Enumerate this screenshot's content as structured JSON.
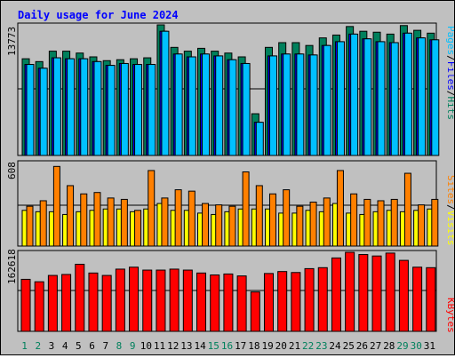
{
  "title": "Daily usage for June 2024",
  "colors": {
    "hits": "#00805c",
    "files": "#0000ff",
    "pages": "#00c0ff",
    "visits": "#ffff00",
    "sites": "#ff8000",
    "kbytes": "#ff0000",
    "title": "#0000ff",
    "background": "#c0c0c0",
    "weekend_label": "#00805c"
  },
  "chart_data": [
    {
      "type": "bar",
      "panel": "hits-files-pages",
      "ymax_label": "13773",
      "ymax": 13773,
      "categories": [
        "1",
        "2",
        "3",
        "4",
        "5",
        "6",
        "7",
        "8",
        "9",
        "10",
        "11",
        "12",
        "13",
        "14",
        "15",
        "16",
        "17",
        "18",
        "19",
        "20",
        "21",
        "22",
        "23",
        "24",
        "25",
        "26",
        "27",
        "28",
        "29",
        "30",
        "31"
      ],
      "right_label": {
        "pages": "Pages",
        "files": "Files",
        "hits": "Hits",
        "sep": "/"
      },
      "series": [
        {
          "name": "Hits",
          "color": "#00805c",
          "values": [
            10200,
            9900,
            11000,
            11000,
            10800,
            10400,
            10000,
            10100,
            10200,
            10300,
            13773,
            11400,
            11000,
            11300,
            11000,
            10800,
            10400,
            4400,
            11400,
            11900,
            11900,
            11600,
            12400,
            12700,
            13600,
            13100,
            13000,
            12800,
            13700,
            13200,
            12900
          ]
        },
        {
          "name": "Files",
          "color": "#0000ff",
          "values": [
            9600,
            9200,
            10300,
            10200,
            10200,
            9900,
            9500,
            9700,
            9600,
            9600,
            13100,
            10700,
            10400,
            10700,
            10500,
            10100,
            9700,
            3500,
            10500,
            10700,
            10700,
            10600,
            11600,
            12000,
            12800,
            12300,
            12000,
            11900,
            12900,
            12400,
            12200
          ]
        },
        {
          "name": "Pages",
          "color": "#00c0ff",
          "values": [
            9600,
            9200,
            10300,
            10200,
            10200,
            9900,
            9500,
            9700,
            9600,
            9600,
            13100,
            10700,
            10400,
            10700,
            10500,
            10100,
            9700,
            3500,
            10500,
            10700,
            10700,
            10600,
            11600,
            12000,
            12800,
            12300,
            12000,
            11900,
            12900,
            12400,
            12200
          ]
        }
      ]
    },
    {
      "type": "bar",
      "panel": "visits-sites",
      "ymax_label": "608",
      "ymax": 608,
      "categories": [
        "1",
        "2",
        "3",
        "4",
        "5",
        "6",
        "7",
        "8",
        "9",
        "10",
        "11",
        "12",
        "13",
        "14",
        "15",
        "16",
        "17",
        "18",
        "19",
        "20",
        "21",
        "22",
        "23",
        "24",
        "25",
        "26",
        "27",
        "28",
        "29",
        "30",
        "31"
      ],
      "right_label": {
        "sites": "Sites",
        "visits": "Visits",
        "sep": "/"
      },
      "series": [
        {
          "name": "Visits",
          "color": "#ffff00",
          "values": [
            260,
            250,
            250,
            230,
            250,
            260,
            270,
            270,
            250,
            270,
            310,
            260,
            260,
            240,
            230,
            250,
            270,
            270,
            270,
            240,
            240,
            260,
            250,
            310,
            240,
            230,
            250,
            260,
            250,
            260,
            270
          ]
        },
        {
          "name": "Sites",
          "color": "#ff8000",
          "values": [
            290,
            330,
            580,
            440,
            380,
            390,
            350,
            340,
            260,
            550,
            350,
            410,
            400,
            310,
            300,
            290,
            540,
            440,
            380,
            410,
            290,
            320,
            350,
            550,
            380,
            340,
            330,
            340,
            530,
            300,
            340
          ]
        }
      ]
    },
    {
      "type": "bar",
      "panel": "kbytes",
      "ymax_label": "162618",
      "ymax": 162618,
      "categories": [
        "1",
        "2",
        "3",
        "4",
        "5",
        "6",
        "7",
        "8",
        "9",
        "10",
        "11",
        "12",
        "13",
        "14",
        "15",
        "16",
        "17",
        "18",
        "19",
        "20",
        "21",
        "22",
        "23",
        "24",
        "25",
        "26",
        "27",
        "28",
        "29",
        "30",
        "31"
      ],
      "right_label": {
        "kbytes": "KBytes"
      },
      "series": [
        {
          "name": "KBytes",
          "color": "#ff0000",
          "values": [
            107000,
            102000,
            115000,
            117000,
            138000,
            120000,
            115000,
            128000,
            132000,
            126000,
            126000,
            128000,
            126000,
            120000,
            116000,
            118000,
            114000,
            81000,
            119000,
            123000,
            121000,
            129000,
            131000,
            151000,
            162618,
            158000,
            155000,
            161000,
            146000,
            132000,
            131000
          ]
        }
      ]
    }
  ],
  "x_labels": [
    "1",
    "2",
    "3",
    "4",
    "5",
    "6",
    "7",
    "8",
    "9",
    "10",
    "11",
    "12",
    "13",
    "14",
    "15",
    "16",
    "17",
    "18",
    "19",
    "20",
    "21",
    "22",
    "23",
    "24",
    "25",
    "26",
    "27",
    "28",
    "29",
    "30",
    "31"
  ],
  "weekend_days": [
    "1",
    "2",
    "8",
    "9",
    "15",
    "16",
    "22",
    "23",
    "29",
    "30"
  ]
}
